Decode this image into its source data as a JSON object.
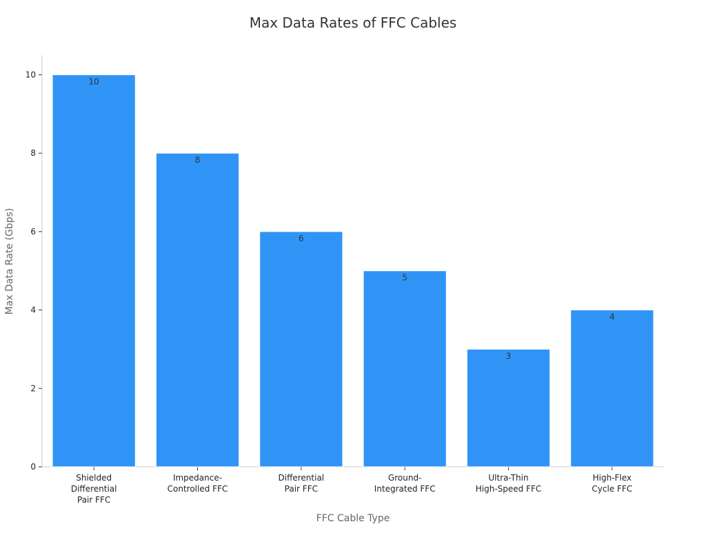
{
  "chart_data": {
    "type": "bar",
    "title": "Max Data Rates of FFC Cables",
    "xlabel": "FFC Cable Type",
    "ylabel": "Max Data Rate (Gbps)",
    "categories": [
      [
        "Shielded",
        "Differential",
        "Pair FFC"
      ],
      [
        "Impedance-",
        "Controlled FFC"
      ],
      [
        "Differential",
        "Pair FFC"
      ],
      [
        "Ground-",
        "Integrated FFC"
      ],
      [
        "Ultra-Thin",
        "High-Speed FFC"
      ],
      [
        "High-Flex",
        "Cycle FFC"
      ]
    ],
    "values": [
      10,
      8,
      6,
      5,
      3,
      4
    ],
    "data_labels": [
      "10",
      "8",
      "6",
      "5",
      "3",
      "4"
    ],
    "yticks": [
      0,
      2,
      4,
      6,
      8,
      10
    ],
    "ytick_labels": [
      "0",
      "2",
      "4",
      "6",
      "8",
      "10"
    ],
    "ylim": [
      0,
      10.5
    ],
    "grid": false,
    "legend": "none",
    "colors": {
      "bar": "#3094f7",
      "bar_edge": "#ffffff",
      "axis": "#cccccc"
    }
  }
}
